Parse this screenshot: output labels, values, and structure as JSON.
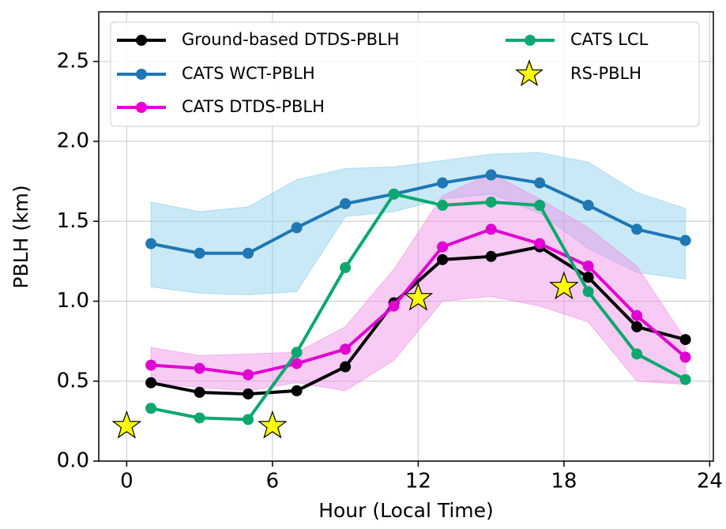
{
  "chart_data": {
    "type": "line",
    "xlabel": "Hour (Local Time)",
    "ylabel": "PBLH (km)",
    "xlim": [
      -1.15,
      24.15
    ],
    "ylim": [
      0,
      2.81
    ],
    "xticks": [
      0,
      6,
      12,
      18,
      24
    ],
    "yticks": [
      {
        "value": 0,
        "label": "0.0"
      },
      0.5,
      {
        "value": 1,
        "label": "1.0"
      },
      1.5,
      {
        "value": 2,
        "label": "2.0"
      },
      2.5
    ],
    "grid": true,
    "legend": "upper",
    "x": [
      1,
      3,
      5,
      7,
      9,
      11,
      13,
      15,
      17,
      19,
      21,
      23
    ],
    "series": [
      {
        "name": "Ground-based DTDS-PBLH",
        "color": "#000000",
        "values": [
          0.49,
          0.43,
          0.42,
          0.44,
          0.59,
          0.99,
          1.26,
          1.28,
          1.34,
          1.15,
          0.84,
          0.76
        ]
      },
      {
        "name": "CATS WCT-PBLH",
        "color": "#1f77b4",
        "values": [
          1.36,
          1.3,
          1.3,
          1.46,
          1.61,
          1.67,
          1.74,
          1.79,
          1.74,
          1.6,
          1.45,
          1.38
        ],
        "lower": [
          1.09,
          1.05,
          1.04,
          1.06,
          1.53,
          1.56,
          1.64,
          1.67,
          1.55,
          1.33,
          1.18,
          1.14
        ],
        "upper": [
          1.62,
          1.56,
          1.59,
          1.76,
          1.83,
          1.84,
          1.88,
          1.92,
          1.93,
          1.87,
          1.68,
          1.58
        ],
        "band_color": "#87ceeb"
      },
      {
        "name": "CATS DTDS-PBLH",
        "color": "#e100d2",
        "values": [
          0.6,
          0.58,
          0.54,
          0.61,
          0.7,
          0.97,
          1.34,
          1.45,
          1.36,
          1.22,
          0.91,
          0.65
        ],
        "lower": [
          0.49,
          0.46,
          0.44,
          0.49,
          0.44,
          0.63,
          1.0,
          1.03,
          0.97,
          0.87,
          0.5,
          0.48
        ],
        "upper": [
          0.71,
          0.66,
          0.67,
          0.68,
          0.84,
          1.2,
          1.66,
          1.8,
          1.64,
          1.46,
          1.22,
          0.76
        ],
        "band_color": "#f08ce6"
      },
      {
        "name": "CATS LCL",
        "color": "#0aa86e",
        "values": [
          0.33,
          0.27,
          0.26,
          0.68,
          1.21,
          1.67,
          1.6,
          1.62,
          1.6,
          1.06,
          0.67,
          0.51
        ]
      },
      {
        "name": "RS-PBLH",
        "color": "#ffff00",
        "marker": "star",
        "x": [
          0,
          6,
          12,
          18
        ],
        "values": [
          0.22,
          0.22,
          1.02,
          1.09
        ]
      }
    ]
  }
}
